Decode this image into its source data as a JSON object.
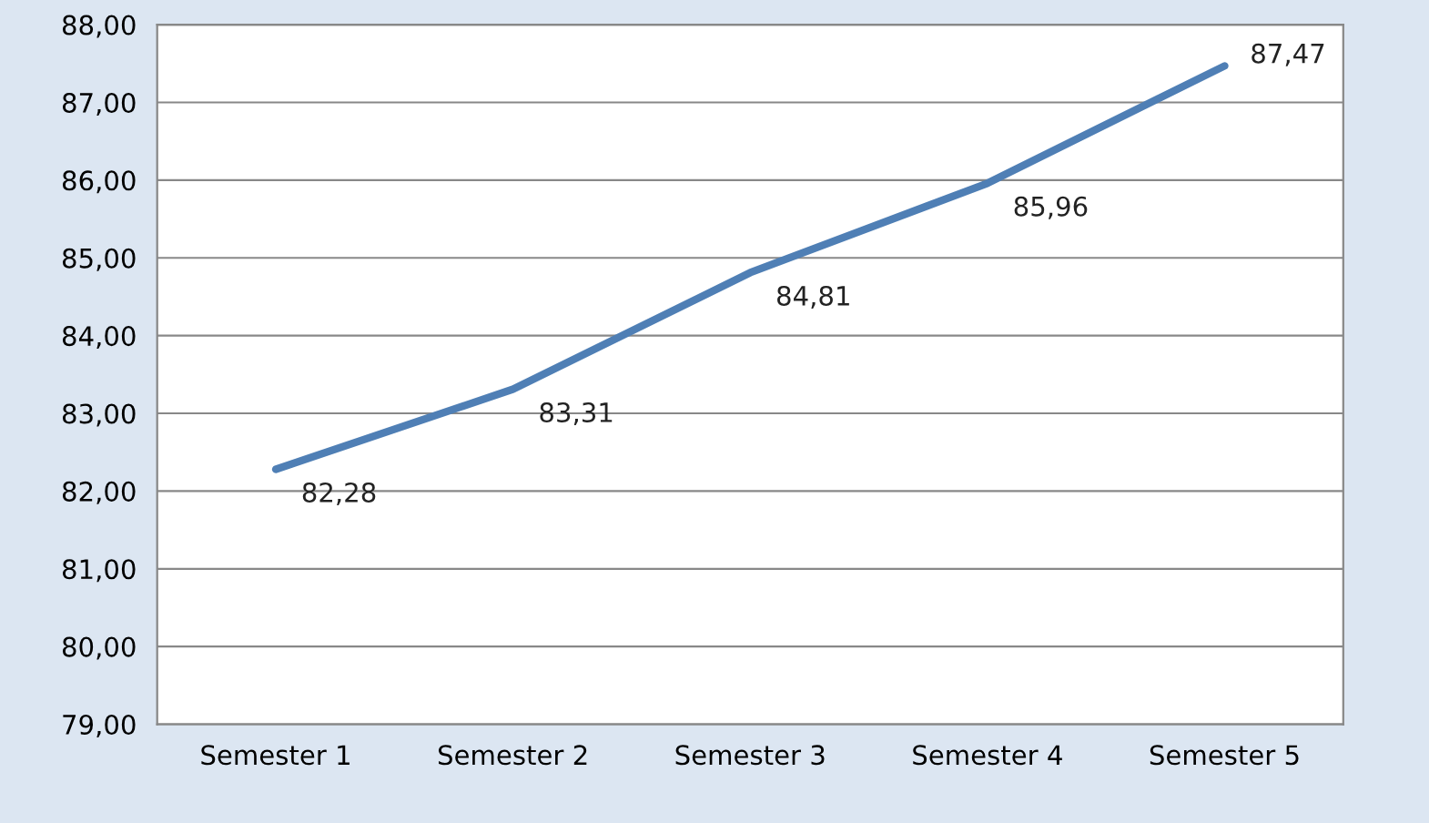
{
  "chart_data": {
    "type": "line",
    "categories": [
      "Semester 1",
      "Semester 2",
      "Semester 3",
      "Semester 4",
      "Semester 5"
    ],
    "series": [
      {
        "color": "#4f7fb5",
        "values": [
          82.28,
          83.31,
          84.81,
          85.96,
          87.47
        ],
        "value_labels": [
          "82,28",
          "83,31",
          "84,81",
          "85,96",
          "87,47"
        ]
      }
    ],
    "ylim": [
      79,
      88
    ],
    "yticks": [
      {
        "value": 79,
        "label": "79,00"
      },
      {
        "value": 80,
        "label": "80,00"
      },
      {
        "value": 81,
        "label": "81,00"
      },
      {
        "value": 82,
        "label": "82,00"
      },
      {
        "value": 83,
        "label": "83,00"
      },
      {
        "value": 84,
        "label": "84,00"
      },
      {
        "value": 85,
        "label": "85,00"
      },
      {
        "value": 86,
        "label": "86,00"
      },
      {
        "value": 87,
        "label": "87,00"
      },
      {
        "value": 88,
        "label": "88,00"
      }
    ],
    "grid": "y",
    "legend": false,
    "marker": "none",
    "line_style": "solid"
  }
}
